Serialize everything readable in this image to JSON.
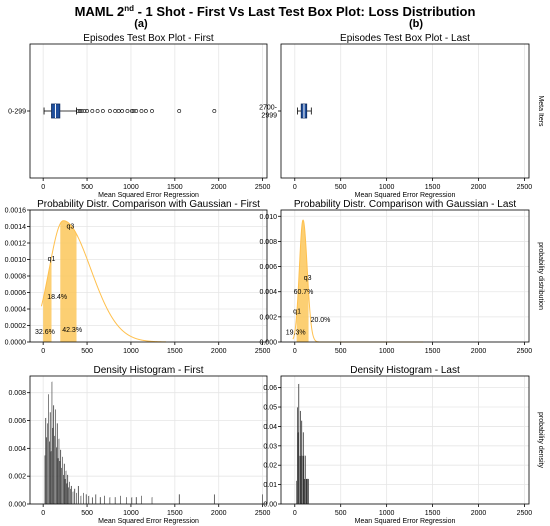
{
  "figure": {
    "title_main": "MAML 2",
    "title_sup": "nd",
    "title_rest": " - 1 Shot - First Vs Last Test Box Plot: Loss Distribution",
    "label_a": "(a)",
    "label_b": "(b)"
  },
  "colors": {
    "box_fill": "#1f4e9c",
    "gauss_line": "#ffc04d",
    "gauss_fill": "#fcc75a",
    "hist_bar": "#000000",
    "grid": "#e6e6e6",
    "axis": "#000000"
  },
  "chart_data": [
    {
      "id": "box-first",
      "type": "box",
      "title": "Episodes Test Box Plot - First",
      "xlabel": "Mean Squared Error Regression",
      "ylabel": "",
      "xlim": [
        -150,
        2550
      ],
      "xticks": [
        0,
        500,
        1000,
        1500,
        2000,
        2500
      ],
      "category": "0-299",
      "box": {
        "whislo": 10,
        "q1": 95,
        "med": 140,
        "q3": 190,
        "whishi": 380
      },
      "outliers": [
        400,
        420,
        440,
        470,
        500,
        560,
        620,
        680,
        760,
        820,
        860,
        900,
        960,
        1010,
        1030,
        1060,
        1120,
        1170,
        1240,
        1550,
        1950
      ],
      "grid": true
    },
    {
      "id": "box-last",
      "type": "box",
      "title": "Episodes Test Box Plot - Last",
      "xlabel": "Mean Squared Error Regression",
      "ylabel": "Meta Iters",
      "xlim": [
        -150,
        2550
      ],
      "xticks": [
        0,
        500,
        1000,
        1500,
        2000,
        2500
      ],
      "category": [
        "2700-",
        "2999"
      ],
      "box": {
        "whislo": 30,
        "q1": 70,
        "med": 100,
        "q3": 130,
        "whishi": 180
      },
      "outliers": [],
      "grid": true
    },
    {
      "id": "gauss-first",
      "type": "area",
      "title": "Probability Distr. Comparison with Gaussian - First",
      "xlabel": "",
      "ylabel": "",
      "xlim": [
        -150,
        2550
      ],
      "ylim": [
        0,
        0.0016
      ],
      "xticks": [
        0,
        500,
        1000,
        1500,
        2000,
        2500
      ],
      "yticks": [
        0,
        0.0002,
        0.0004,
        0.0006,
        0.0008,
        0.001,
        0.0012,
        0.0014,
        0.0016
      ],
      "ytick_labels": [
        "0.0000",
        "0.0002",
        "0.0004",
        "0.0006",
        "0.0008",
        "0.0010",
        "0.0012",
        "0.0014",
        "0.0016"
      ],
      "curve": {
        "mode": 230,
        "peak": 0.00147,
        "sigma_left": 160,
        "sigma_right": 310
      },
      "shaded": [
        {
          "from": 0,
          "to": 95
        },
        {
          "from": 195,
          "to": 380
        }
      ],
      "quartile_labels": [
        {
          "text": "q1",
          "x": 95
        },
        {
          "text": "q3",
          "x": 310
        }
      ],
      "percent_labels": [
        {
          "text": "18.4%",
          "x": 160,
          "y": 0.00052
        },
        {
          "text": "32.6%",
          "x": 20,
          "y": 0.0001
        },
        {
          "text": "42.3%",
          "x": 330,
          "y": 0.00012
        }
      ],
      "grid": true
    },
    {
      "id": "gauss-last",
      "type": "area",
      "title": "Probability Distr. Comparison with Gaussian - Last",
      "xlabel": "",
      "ylabel": "probability distribution",
      "xlim": [
        -150,
        2550
      ],
      "ylim": [
        0,
        0.0105
      ],
      "xticks": [
        0,
        500,
        1000,
        1500,
        2000,
        2500
      ],
      "yticks": [
        0,
        0.002,
        0.004,
        0.006,
        0.008,
        0.01
      ],
      "ytick_labels": [
        "0.000",
        "0.002",
        "0.004",
        "0.006",
        "0.008",
        "0.010"
      ],
      "curve": {
        "mode": 90,
        "peak": 0.0097,
        "sigma_left": 40,
        "sigma_right": 45
      },
      "shaded": [
        {
          "from": 20,
          "to": 150
        }
      ],
      "quartile_labels": [
        {
          "text": "q1",
          "x": 25
        },
        {
          "text": "q3",
          "x": 140
        }
      ],
      "percent_labels": [
        {
          "text": "60.7%",
          "x": 95,
          "y": 0.0038
        },
        {
          "text": "19.3%",
          "x": 10,
          "y": 0.0006
        },
        {
          "text": "20.0%",
          "x": 280,
          "y": 0.0016
        }
      ],
      "grid": true
    },
    {
      "id": "hist-first",
      "type": "bar",
      "title": "Density Histogram - First",
      "xlabel": "Mean Squared Error Regression",
      "ylabel": "",
      "xlim": [
        -150,
        2550
      ],
      "ylim": [
        0,
        0.0092
      ],
      "xticks": [
        0,
        500,
        1000,
        1500,
        2000,
        2500
      ],
      "yticks": [
        0,
        0.002,
        0.004,
        0.006,
        0.008
      ],
      "ytick_labels": [
        "0.000",
        "0.002",
        "0.004",
        "0.006",
        "0.008"
      ],
      "x": [
        20,
        30,
        40,
        50,
        60,
        70,
        80,
        90,
        100,
        110,
        120,
        130,
        140,
        150,
        160,
        170,
        180,
        190,
        200,
        210,
        220,
        230,
        240,
        250,
        260,
        270,
        280,
        290,
        300,
        310,
        320,
        340,
        360,
        380,
        400,
        430,
        460,
        490,
        520,
        560,
        600,
        650,
        700,
        760,
        820,
        880,
        950,
        1010,
        1060,
        1120,
        1240,
        1550,
        1950,
        2500
      ],
      "values": [
        0.0035,
        0.0062,
        0.0048,
        0.0058,
        0.0079,
        0.0045,
        0.0066,
        0.0038,
        0.0088,
        0.0055,
        0.0071,
        0.0049,
        0.0068,
        0.0041,
        0.0058,
        0.0033,
        0.0047,
        0.0031,
        0.0039,
        0.0026,
        0.0034,
        0.0021,
        0.0029,
        0.0018,
        0.0024,
        0.0015,
        0.0021,
        0.0012,
        0.0016,
        0.0011,
        0.0013,
        0.0009,
        0.0011,
        0.0008,
        0.0013,
        0.0006,
        0.0008,
        0.0007,
        0.0006,
        0.0005,
        0.0007,
        0.0005,
        0.0006,
        0.0005,
        0.0005,
        0.0006,
        0.0005,
        0.0005,
        0.0005,
        0.0006,
        0.0005,
        0.0007,
        0.0007,
        0.0007
      ],
      "bar_width": 8,
      "grid": true
    },
    {
      "id": "hist-last",
      "type": "bar",
      "title": "Density Histogram - Last",
      "xlabel": "Mean Squared Error Regression",
      "ylabel": "probability density",
      "xlim": [
        -150,
        2550
      ],
      "ylim": [
        0,
        0.066
      ],
      "xticks": [
        0,
        500,
        1000,
        1500,
        2000,
        2500
      ],
      "yticks": [
        0,
        0.01,
        0.02,
        0.03,
        0.04,
        0.05,
        0.06
      ],
      "ytick_labels": [
        "0.00",
        "0.01",
        "0.02",
        "0.03",
        "0.04",
        "0.05",
        "0.06"
      ],
      "x": [
        20,
        28,
        36,
        44,
        52,
        60,
        68,
        76,
        84,
        92,
        100,
        108,
        116,
        124,
        132,
        140,
        148
      ],
      "values": [
        0.012,
        0.05,
        0.037,
        0.062,
        0.025,
        0.048,
        0.025,
        0.043,
        0.025,
        0.037,
        0.025,
        0.013,
        0.025,
        0.013,
        0.013,
        0.013,
        0.013
      ],
      "bar_width": 8,
      "grid": true
    }
  ]
}
